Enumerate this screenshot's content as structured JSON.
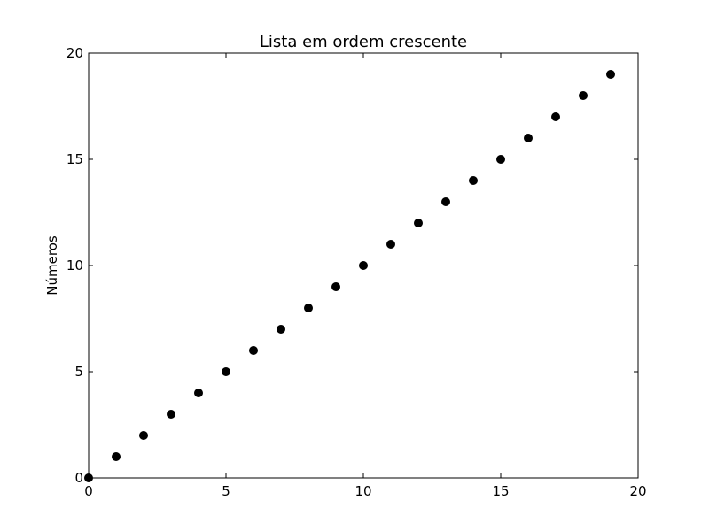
{
  "chart_data": {
    "type": "scatter",
    "title": "Lista em ordem crescente",
    "xlabel": "",
    "ylabel": "Números",
    "xlim": [
      0,
      20
    ],
    "ylim": [
      0,
      20
    ],
    "x_ticks": [
      0,
      5,
      10,
      15,
      20
    ],
    "y_ticks": [
      0,
      5,
      10,
      15,
      20
    ],
    "grid": false,
    "legend": "none",
    "marker_color": "#000000",
    "series": [
      {
        "x": [
          0,
          1,
          2,
          3,
          4,
          5,
          6,
          7,
          8,
          9,
          10,
          11,
          12,
          13,
          14,
          15,
          16,
          17,
          18,
          19
        ],
        "y": [
          0,
          1,
          2,
          3,
          4,
          5,
          6,
          7,
          8,
          9,
          10,
          11,
          12,
          13,
          14,
          15,
          16,
          17,
          18,
          19
        ]
      }
    ]
  }
}
